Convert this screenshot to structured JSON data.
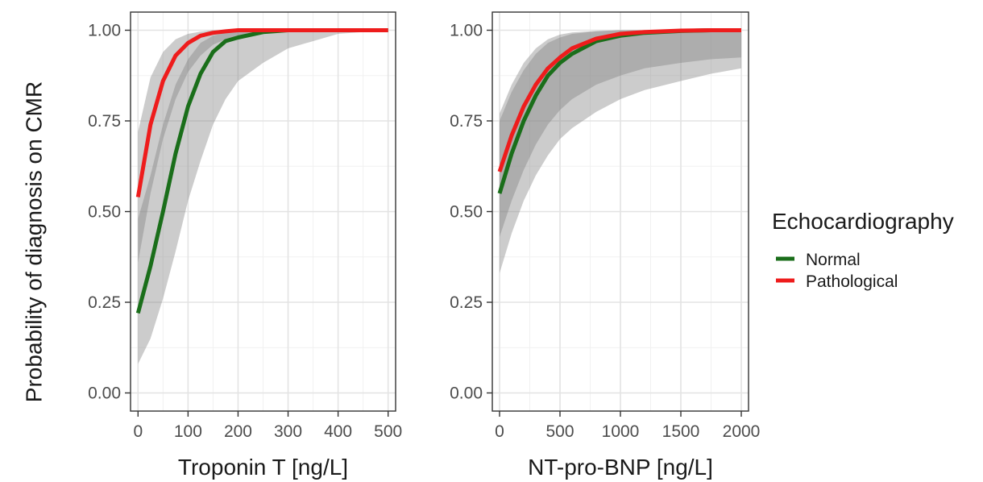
{
  "chart_data": {
    "type": "line",
    "ylabel": "Probability of diagnosis on CMR",
    "legend": {
      "title": "Echocardiography",
      "position": "right",
      "entries": [
        {
          "label": "Normal",
          "color": "#1a6e1a"
        },
        {
          "label": "Pathological",
          "color": "#ee1c1c"
        }
      ]
    },
    "colors": {
      "normal": "#1a6e1a",
      "pathological": "#ee1c1c",
      "ribbon": "#808080"
    },
    "grid": true,
    "panels": [
      {
        "xlabel": "Troponin T [ng/L]",
        "xlim": [
          -15,
          515
        ],
        "ylim": [
          -0.05,
          1.05
        ],
        "xticks": [
          0,
          100,
          200,
          300,
          400,
          500
        ],
        "xtick_labels": [
          "0",
          "100",
          "200",
          "300",
          "400",
          "500"
        ],
        "yticks": [
          0,
          0.25,
          0.5,
          0.75,
          1.0
        ],
        "ytick_labels": [
          "0.00",
          "0.25",
          "0.50",
          "0.75",
          "1.00"
        ],
        "series": [
          {
            "name": "Normal",
            "x": [
              0,
              25,
              50,
              75,
              100,
              125,
              150,
              175,
              200,
              250,
              300,
              400,
              500
            ],
            "y": [
              0.22,
              0.35,
              0.5,
              0.66,
              0.79,
              0.88,
              0.94,
              0.97,
              0.98,
              0.995,
              1.0,
              1.0,
              1.0
            ],
            "lower": [
              0.08,
              0.15,
              0.26,
              0.39,
              0.53,
              0.64,
              0.74,
              0.81,
              0.86,
              0.91,
              0.95,
              0.99,
              1.0
            ],
            "upper": [
              0.48,
              0.6,
              0.74,
              0.85,
              0.92,
              0.965,
              0.985,
              0.993,
              0.997,
              1.0,
              1.0,
              1.0,
              1.0
            ]
          },
          {
            "name": "Pathological",
            "x": [
              0,
              25,
              50,
              75,
              100,
              125,
              150,
              175,
              200,
              250,
              300,
              400,
              500
            ],
            "y": [
              0.54,
              0.74,
              0.86,
              0.93,
              0.965,
              0.985,
              0.993,
              0.997,
              1.0,
              1.0,
              1.0,
              1.0,
              1.0
            ],
            "lower": [
              0.36,
              0.55,
              0.7,
              0.81,
              0.885,
              0.93,
              0.96,
              0.975,
              0.985,
              0.995,
              1.0,
              1.0,
              1.0
            ],
            "upper": [
              0.72,
              0.87,
              0.94,
              0.975,
              0.99,
              0.996,
              1.0,
              1.0,
              1.0,
              1.0,
              1.0,
              1.0,
              1.0
            ]
          }
        ]
      },
      {
        "xlabel": "NT-pro-BNP [ng/L]",
        "xlim": [
          -60,
          2060
        ],
        "ylim": [
          -0.05,
          1.05
        ],
        "xticks": [
          0,
          500,
          1000,
          1500,
          2000
        ],
        "xtick_labels": [
          "0",
          "500",
          "1000",
          "1500",
          "2000"
        ],
        "yticks": [
          0,
          0.25,
          0.5,
          0.75,
          1.0
        ],
        "ytick_labels": [
          "0.00",
          "0.25",
          "0.50",
          "0.75",
          "1.00"
        ],
        "series": [
          {
            "name": "Normal",
            "x": [
              0,
              100,
              200,
              300,
              400,
              500,
              600,
              800,
              1000,
              1200,
              1500,
              1750,
              2000
            ],
            "y": [
              0.55,
              0.66,
              0.75,
              0.82,
              0.875,
              0.91,
              0.935,
              0.97,
              0.985,
              0.993,
              0.998,
              1.0,
              1.0
            ],
            "lower": [
              0.33,
              0.44,
              0.53,
              0.6,
              0.655,
              0.7,
              0.73,
              0.775,
              0.81,
              0.835,
              0.86,
              0.88,
              0.895
            ],
            "upper": [
              0.75,
              0.83,
              0.89,
              0.935,
              0.965,
              0.98,
              0.99,
              0.997,
              1.0,
              1.0,
              1.0,
              1.0,
              1.0
            ]
          },
          {
            "name": "Pathological",
            "x": [
              0,
              100,
              200,
              300,
              400,
              500,
              600,
              800,
              1000,
              1200,
              1500,
              1750,
              2000
            ],
            "y": [
              0.61,
              0.71,
              0.79,
              0.85,
              0.895,
              0.925,
              0.95,
              0.977,
              0.99,
              0.995,
              0.999,
              1.0,
              1.0
            ],
            "lower": [
              0.43,
              0.53,
              0.615,
              0.685,
              0.74,
              0.78,
              0.81,
              0.85,
              0.875,
              0.895,
              0.91,
              0.92,
              0.925
            ],
            "upper": [
              0.77,
              0.85,
              0.91,
              0.95,
              0.975,
              0.988,
              0.994,
              0.998,
              1.0,
              1.0,
              1.0,
              1.0,
              1.0
            ]
          }
        ]
      }
    ]
  }
}
